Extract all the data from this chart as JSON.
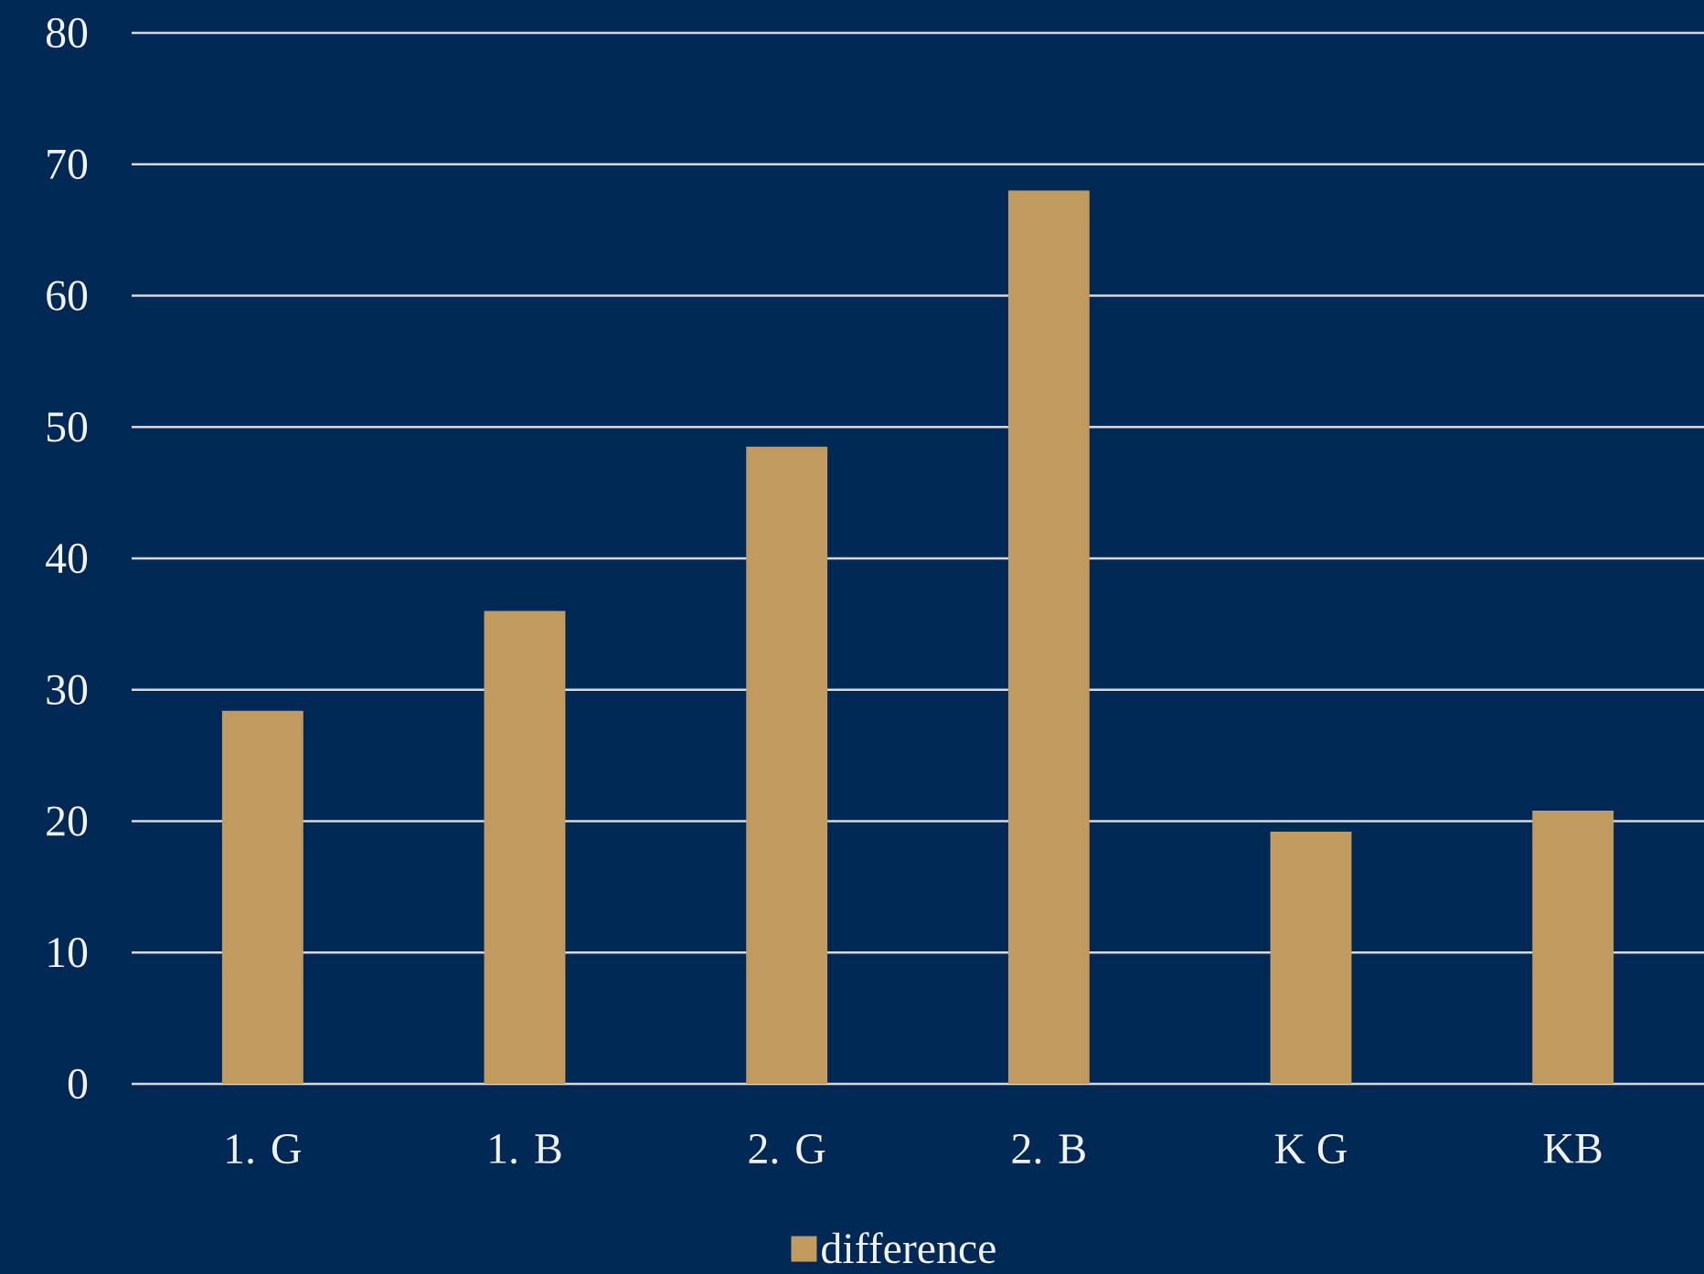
{
  "chart_data": {
    "type": "bar",
    "categories": [
      "1. G",
      "1. B",
      "2. G",
      "2. B",
      "K G",
      "KB"
    ],
    "series": [
      {
        "name": "difference",
        "color": "#c19a5f",
        "values": [
          28.4,
          36.0,
          48.5,
          68.0,
          19.2,
          20.8
        ]
      }
    ],
    "ylim": [
      0,
      80
    ],
    "yticks": [
      0,
      10,
      20,
      30,
      40,
      50,
      60,
      70,
      80
    ],
    "grid": "y",
    "legend": "bottom"
  }
}
